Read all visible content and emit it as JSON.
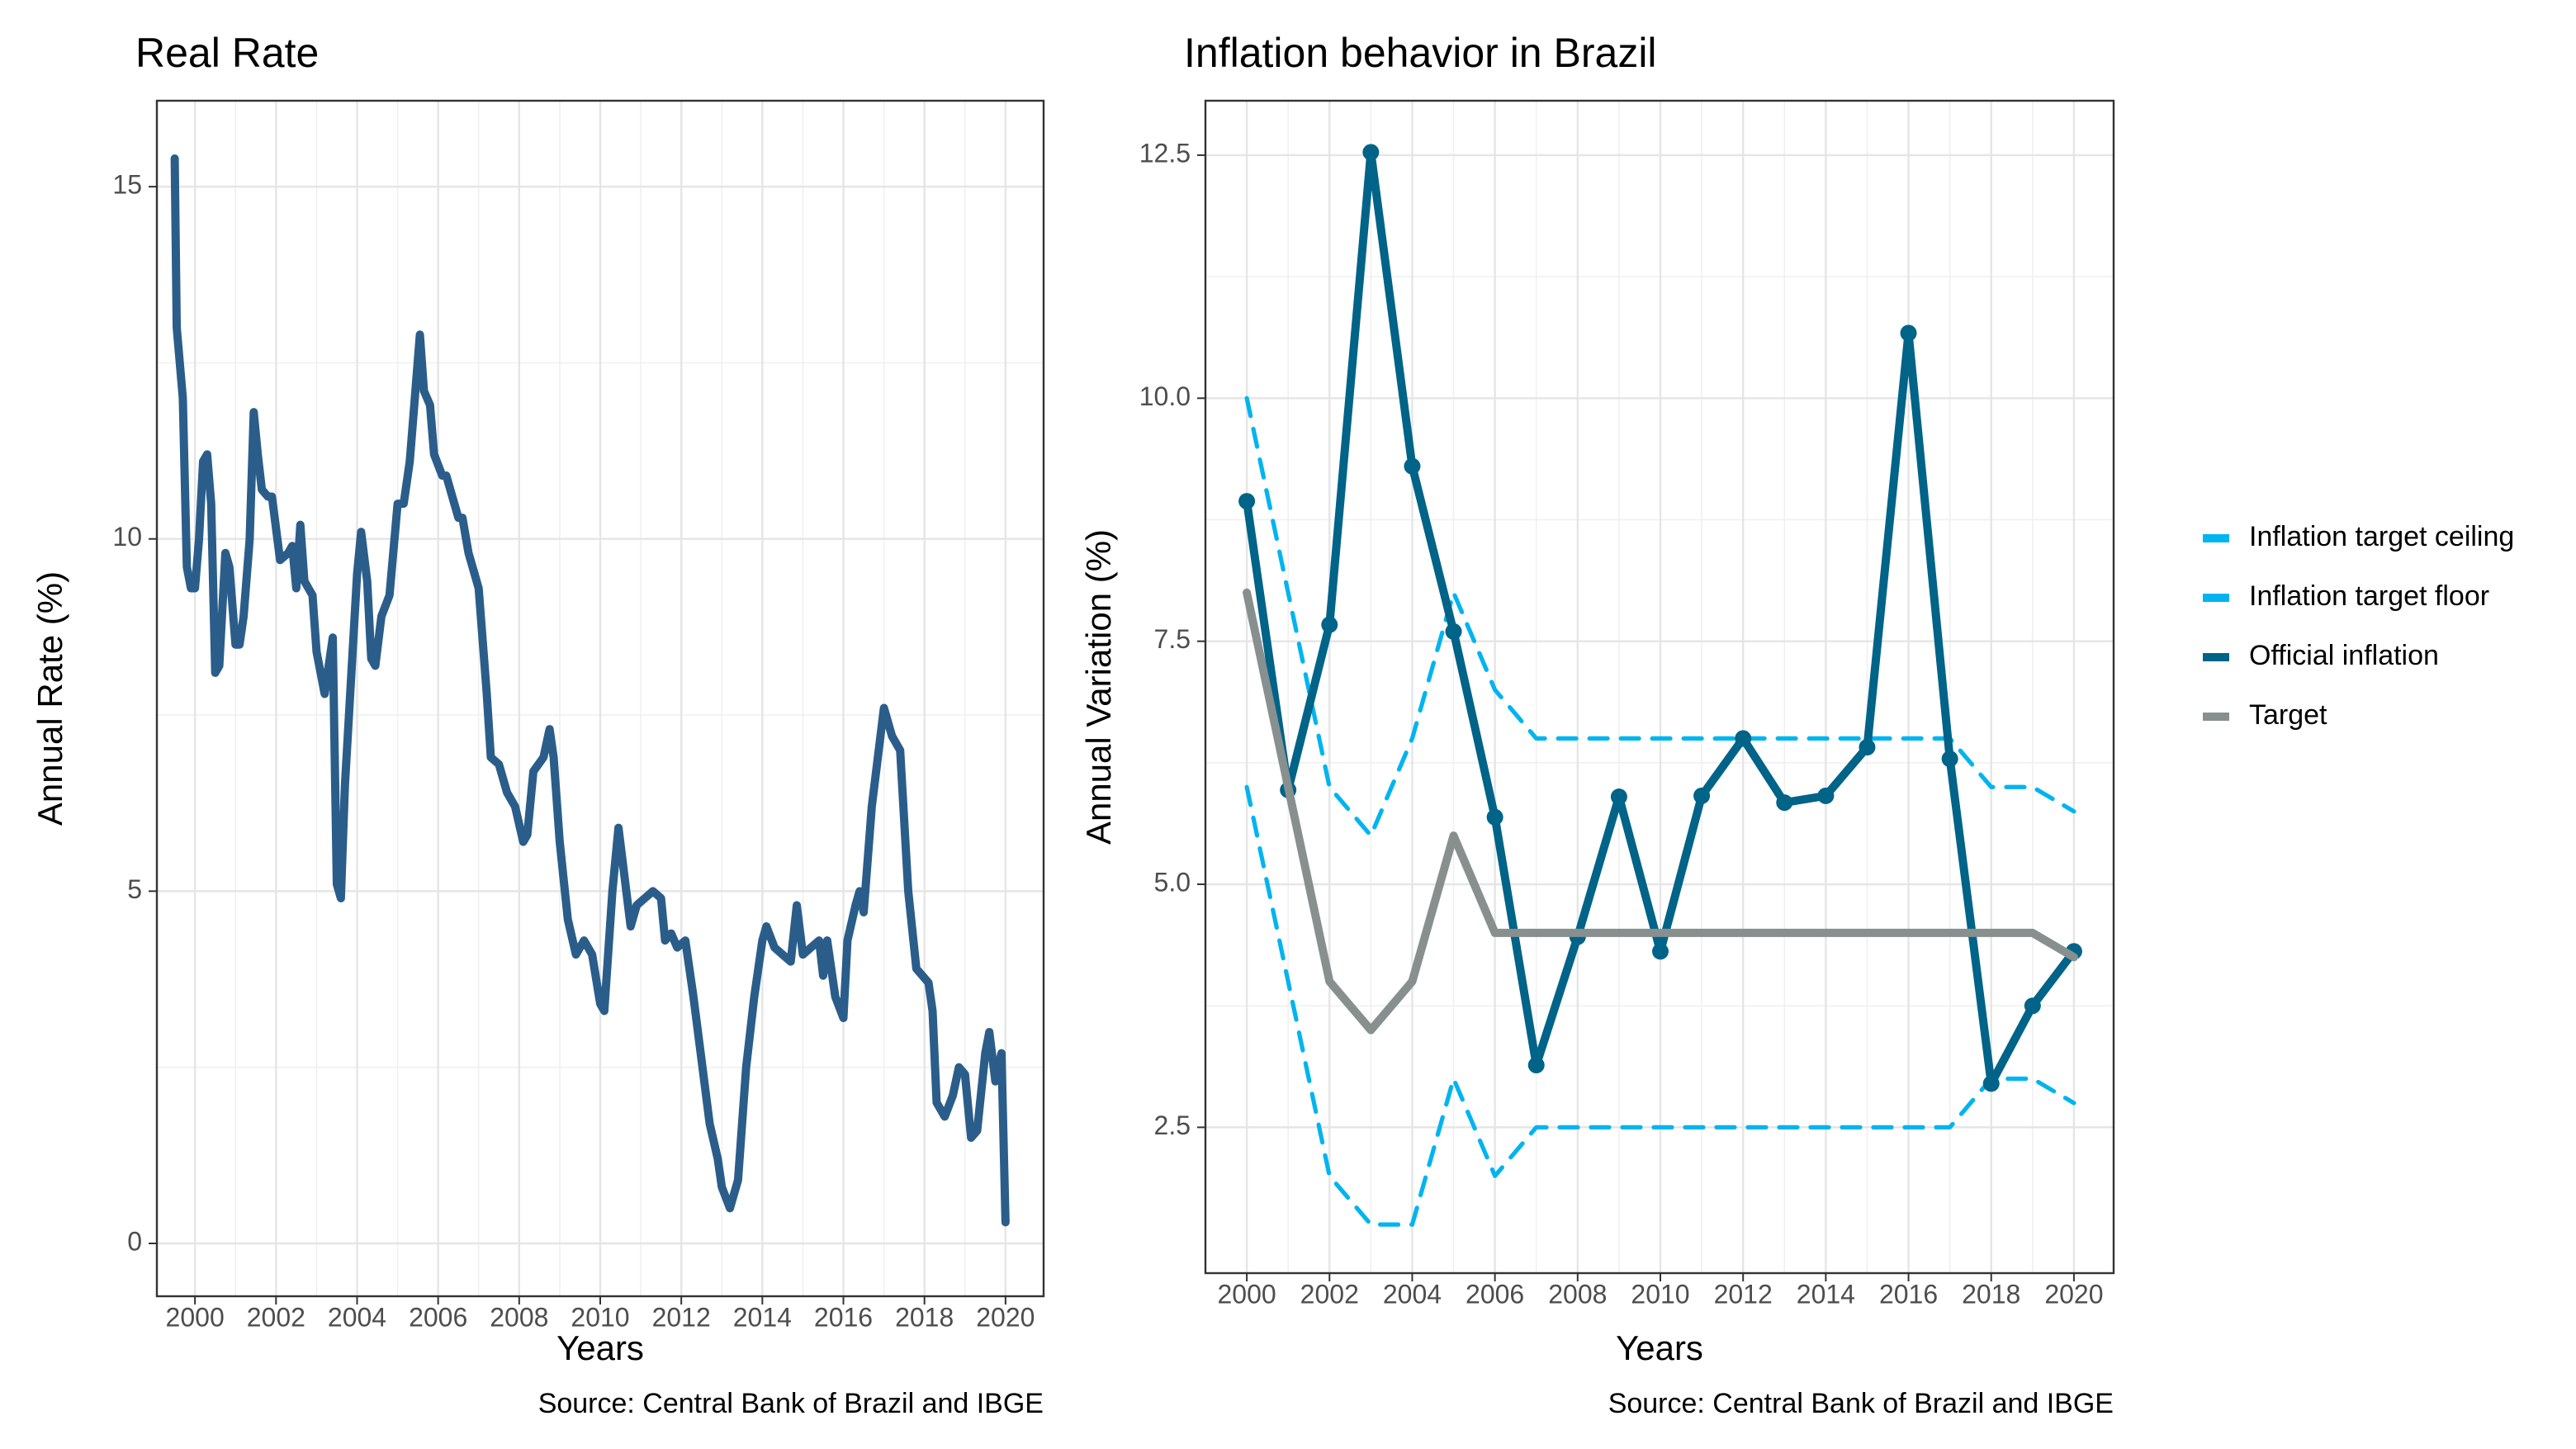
{
  "chart_data": [
    {
      "type": "line",
      "title": "Real Rate",
      "x_label": "Years",
      "y_label": "Annual Rate (%)",
      "caption": "Source: Central Bank of Brazil and IBGE",
      "xlim": [
        1999.06,
        2020.94
      ],
      "xticks": [
        2000,
        2002,
        2004,
        2006,
        2008,
        2010,
        2012,
        2014,
        2016,
        2018,
        2020
      ],
      "ylim": [
        -0.75,
        16.22
      ],
      "yticks": [
        0,
        5,
        10,
        15
      ],
      "grid": true,
      "series": [
        {
          "color": "#2b5d8a",
          "x": [
            1999.5,
            1999.55,
            1999.7,
            1999.8,
            1999.9,
            2000.0,
            2000.1,
            2000.2,
            2000.3,
            2000.4,
            2000.5,
            2000.6,
            2000.75,
            2000.85,
            2001.0,
            2001.1,
            2001.2,
            2001.35,
            2001.45,
            2001.55,
            2001.65,
            2001.8,
            2001.9,
            2002.1,
            2002.3,
            2002.4,
            2002.5,
            2002.6,
            2002.7,
            2002.9,
            2003.0,
            2003.2,
            2003.4,
            2003.5,
            2003.6,
            2003.7,
            2003.85,
            2004.0,
            2004.1,
            2004.25,
            2004.35,
            2004.45,
            2004.6,
            2004.8,
            2005.0,
            2005.15,
            2005.3,
            2005.55,
            2005.65,
            2005.8,
            2005.9,
            2006.1,
            2006.2,
            2006.5,
            2006.6,
            2006.75,
            2007.0,
            2007.2,
            2007.3,
            2007.5,
            2007.7,
            2007.9,
            2008.1,
            2008.2,
            2008.35,
            2008.6,
            2008.75,
            2008.85,
            2009.0,
            2009.2,
            2009.4,
            2009.6,
            2009.8,
            2010.0,
            2010.1,
            2010.3,
            2010.45,
            2010.6,
            2010.75,
            2010.9,
            2011.1,
            2011.3,
            2011.5,
            2011.6,
            2011.75,
            2011.9,
            2012.1,
            2012.3,
            2012.5,
            2012.7,
            2012.9,
            2013.0,
            2013.2,
            2013.4,
            2013.6,
            2013.8,
            2014.0,
            2014.1,
            2014.3,
            2014.5,
            2014.7,
            2014.85,
            2015.0,
            2015.2,
            2015.4,
            2015.5,
            2015.6,
            2015.8,
            2016.0,
            2016.1,
            2016.3,
            2016.4,
            2016.5,
            2016.7,
            2017.0,
            2017.2,
            2017.4,
            2017.6,
            2017.8,
            2018.1,
            2018.2,
            2018.3,
            2018.5,
            2018.7,
            2018.85,
            2019.0,
            2019.15,
            2019.3,
            2019.5,
            2019.6,
            2019.75,
            2019.9,
            2020.0
          ],
          "values": [
            15.4,
            13,
            12,
            9.6,
            9.3,
            9.3,
            10,
            11.1,
            11.2,
            10.5,
            8.1,
            8.2,
            9.8,
            9.6,
            8.5,
            8.5,
            8.9,
            10,
            11.8,
            11.2,
            10.7,
            10.6,
            10.6,
            9.7,
            9.8,
            9.9,
            9.3,
            10.2,
            9.4,
            9.2,
            8.4,
            7.8,
            8.6,
            5.1,
            4.9,
            6.5,
            8,
            9.5,
            10.1,
            9.4,
            8.3,
            8.2,
            8.9,
            9.2,
            10.5,
            10.5,
            11.1,
            12.9,
            12.1,
            11.9,
            11.2,
            10.9,
            10.9,
            10.3,
            10.3,
            9.8,
            9.3,
            7.8,
            6.9,
            6.8,
            6.4,
            6.2,
            5.7,
            5.8,
            6.7,
            6.9,
            7.3,
            6.9,
            5.7,
            4.6,
            4.1,
            4.3,
            4.1,
            3.4,
            3.3,
            5.0,
            5.9,
            5.2,
            4.5,
            4.8,
            4.9,
            5.0,
            4.9,
            4.3,
            4.4,
            4.2,
            4.3,
            3.5,
            2.6,
            1.7,
            1.2,
            0.8,
            0.5,
            0.9,
            2.5,
            3.5,
            4.3,
            4.5,
            4.2,
            4.1,
            4.0,
            4.8,
            4.1,
            4.2,
            4.3,
            3.8,
            4.3,
            3.5,
            3.2,
            4.3,
            4.8,
            5.0,
            4.7,
            6.2,
            7.6,
            7.2,
            7.0,
            5.0,
            3.9,
            3.7,
            3.3,
            2.0,
            1.8,
            2.1,
            2.5,
            2.4,
            1.5,
            1.6,
            2.7,
            3.0,
            2.3,
            2.7,
            0.3
          ]
        }
      ]
    },
    {
      "type": "line",
      "title": "Inflation behavior in Brazil",
      "x_label": "Years",
      "y_label": "Annual Variation (%)",
      "caption": "Source: Central Bank of Brazil and IBGE",
      "xlim": [
        1999.0,
        2020.96
      ],
      "xticks": [
        2000,
        2002,
        2004,
        2006,
        2008,
        2010,
        2012,
        2014,
        2016,
        2018,
        2020
      ],
      "ylim": [
        1.0,
        13.06
      ],
      "yticks": [
        2.5,
        {
          "value": 5,
          "label": "5.0"
        },
        7.5,
        {
          "value": 10,
          "label": "10.0"
        },
        12.5
      ],
      "grid": true,
      "legend": "right",
      "x": [
        2000,
        2001,
        2002,
        2003,
        2004,
        2005,
        2006,
        2007,
        2008,
        2009,
        2010,
        2011,
        2012,
        2013,
        2014,
        2015,
        2016,
        2017,
        2018,
        2019,
        2020
      ],
      "series": [
        {
          "name": "Inflation target ceiling",
          "color": "#00b4f0",
          "linestyle": "dashed",
          "values": [
            10,
            8,
            6,
            5.5,
            6.5,
            8,
            7,
            6.5,
            6.5,
            6.5,
            6.5,
            6.5,
            6.5,
            6.5,
            6.5,
            6.5,
            6.5,
            6.5,
            6,
            6,
            5.75
          ]
        },
        {
          "name": "Inflation target floor",
          "color": "#00b4f0",
          "linestyle": "dashed",
          "values": [
            6,
            4,
            2,
            1.5,
            1.5,
            3,
            2,
            2.5,
            2.5,
            2.5,
            2.5,
            2.5,
            2.5,
            2.5,
            2.5,
            2.5,
            2.5,
            2.5,
            3,
            3,
            2.75
          ]
        },
        {
          "name": "Official inflation",
          "color": "#006388",
          "linestyle": "solid",
          "markers": true,
          "values": [
            8.94,
            5.97,
            7.67,
            12.53,
            9.3,
            7.6,
            5.69,
            3.14,
            4.46,
            5.9,
            4.31,
            5.91,
            6.5,
            5.84,
            5.91,
            6.41,
            10.67,
            6.29,
            2.95,
            3.75,
            4.31
          ]
        },
        {
          "name": "Target",
          "color": "#888f8f",
          "linestyle": "solid",
          "values": [
            8,
            6,
            4,
            3.5,
            4,
            5.5,
            4.5,
            4.5,
            4.5,
            4.5,
            4.5,
            4.5,
            4.5,
            4.5,
            4.5,
            4.5,
            4.5,
            4.5,
            4.5,
            4.5,
            4.25
          ]
        }
      ]
    }
  ]
}
